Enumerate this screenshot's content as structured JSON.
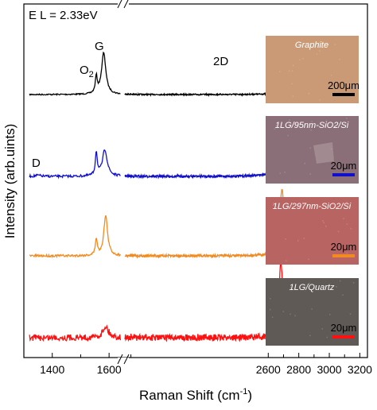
{
  "chart_data": {
    "type": "line",
    "xlabel": "Raman Shift (cm⁻¹)",
    "ylabel": "Intensity (arb.uints)",
    "energy_label": "E L = 2.33eV",
    "x_ticks": [
      1400,
      1600,
      2600,
      2800,
      3000,
      3200
    ],
    "x_ranges": [
      [
        1300,
        1650
      ],
      [
        1650,
        3250
      ]
    ],
    "axis_break": "//",
    "peak_labels": [
      "O2",
      "G",
      "2D",
      "D"
    ],
    "series": [
      {
        "name": "Graphite",
        "color": "#000000",
        "baseline": 0,
        "peaks": [
          {
            "x": 1555,
            "height": 0.3,
            "width": 4
          },
          {
            "x": 1581,
            "height": 0.75,
            "width": 9
          },
          {
            "x": 2690,
            "height": 0.15,
            "width": 18
          },
          {
            "x": 2722,
            "height": 0.42,
            "width": 20
          }
        ]
      },
      {
        "name": "1LG/95nm-SiO2/Si",
        "color": "#1010cc",
        "baseline": 1,
        "peaks": [
          {
            "x": 1350,
            "height": 0.02,
            "width": 10
          },
          {
            "x": 1555,
            "height": 0.45,
            "width": 4
          },
          {
            "x": 1585,
            "height": 0.5,
            "width": 10
          },
          {
            "x": 2682,
            "height": 1.0,
            "width": 22
          }
        ]
      },
      {
        "name": "1LG/297nm-SiO2/Si",
        "color": "#f28a20",
        "baseline": 2,
        "peaks": [
          {
            "x": 1555,
            "height": 0.25,
            "width": 4
          },
          {
            "x": 1588,
            "height": 0.6,
            "width": 8
          },
          {
            "x": 2690,
            "height": 1.0,
            "width": 18
          }
        ]
      },
      {
        "name": "1LG/Quartz",
        "color": "#ff1010",
        "baseline": 3,
        "peaks": [
          {
            "x": 1588,
            "height": 0.15,
            "width": 12
          },
          {
            "x": 2683,
            "height": 1.0,
            "width": 15
          }
        ]
      }
    ],
    "insets": [
      {
        "title": "Graphite",
        "scale": "200μm",
        "bg": "#c99a75",
        "bar_color": "#000000"
      },
      {
        "title": "1LG/95nm-SiO2/Si",
        "scale": "20μm",
        "bg": "#8a6f78",
        "bar_color": "#1010cc"
      },
      {
        "title": "1LG/297nm-SiO2/Si",
        "scale": "20μm",
        "bg": "#b86462",
        "bar_color": "#f28a20"
      },
      {
        "title": "1LG/Quartz",
        "scale": "20μm",
        "bg": "#5f5a56",
        "bar_color": "#ff1010"
      }
    ]
  }
}
